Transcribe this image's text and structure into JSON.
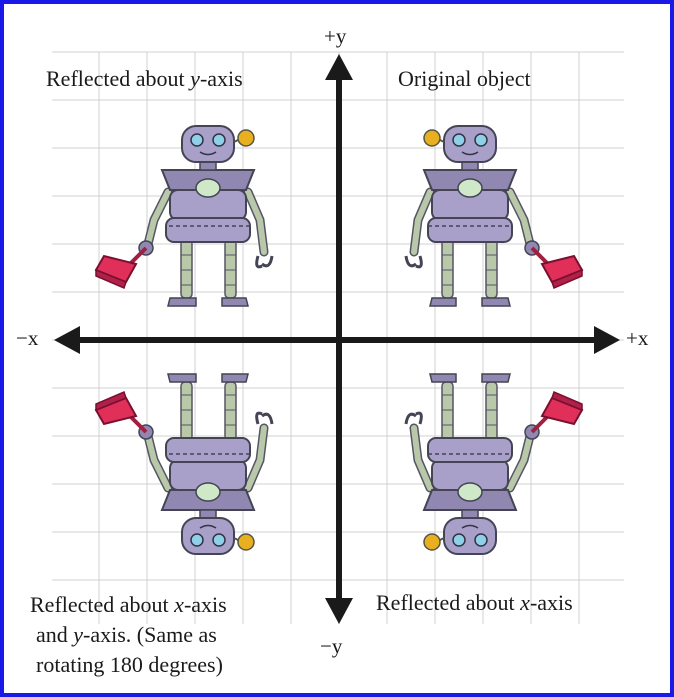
{
  "axes": {
    "pos_y": "+y",
    "neg_y": "−y",
    "pos_x": "+x",
    "neg_x": "−x"
  },
  "quadrants": {
    "top_left": {
      "pre": "Reflected about ",
      "var": "y",
      "post": "-axis"
    },
    "top_right": {
      "text": "Original object"
    },
    "bottom_right": {
      "pre": "Reflected about ",
      "var": "x",
      "post": "-axis"
    },
    "bottom_left": {
      "line1_pre": "Reflected about ",
      "line1_var": "x",
      "line1_post": "-axis",
      "line2_pre": "and ",
      "line2_var": "y",
      "line2_post": "-axis.  (Same as",
      "line3": "rotating 180 degrees)"
    }
  },
  "colors": {
    "frame": "#1a1ae6",
    "grid": "#d0d0d0",
    "axis": "#1a1a1a",
    "robot_body": "#a8a0c8",
    "robot_dark": "#6e6690",
    "robot_limb": "#b8c8a8",
    "eye": "#8fd0e8",
    "dustpan": "#e0305a"
  }
}
